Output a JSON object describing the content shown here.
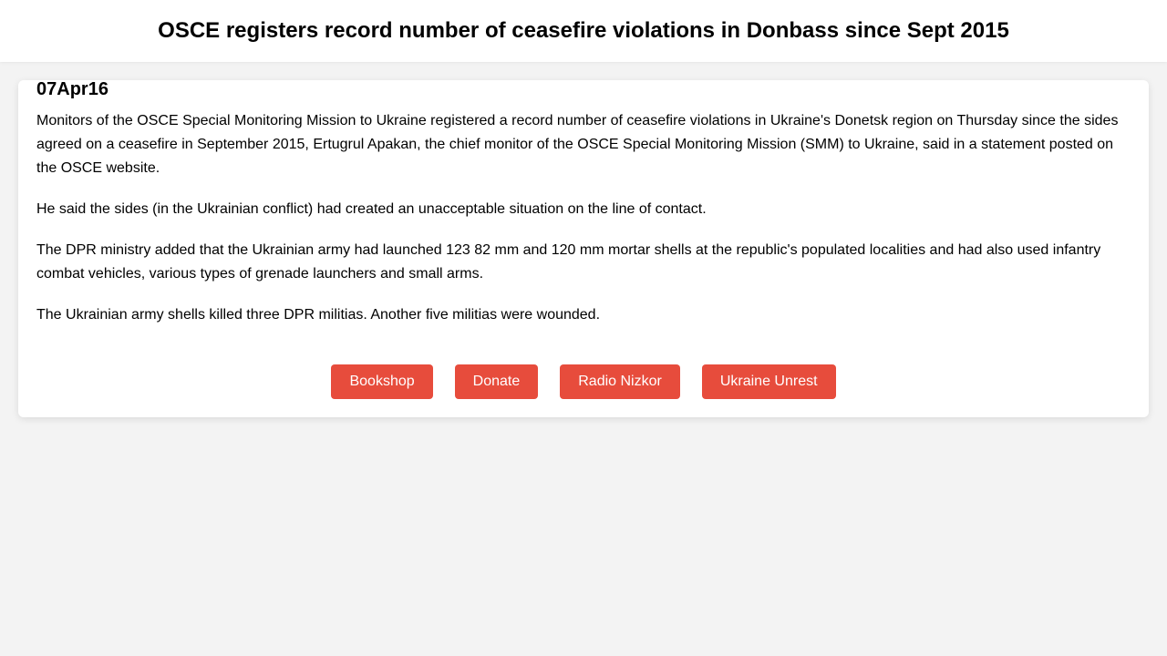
{
  "header": {
    "title": "OSCE registers record number of ceasefire violations in Donbass since Sept 2015"
  },
  "article": {
    "date": "07Apr16",
    "paragraphs": [
      "Monitors of the OSCE Special Monitoring Mission to Ukraine registered a record number of ceasefire violations in Ukraine's Donetsk region on Thursday since the sides agreed on a ceasefire in September 2015, Ertugrul Apakan, the chief monitor of the OSCE Special Monitoring Mission (SMM) to Ukraine, said in a statement posted on the OSCE website.",
      "He said the sides (in the Ukrainian conflict) had created an unacceptable situation on the line of contact.",
      "The DPR ministry added that the Ukrainian army had launched 123 82 mm and 120 mm mortar shells at the republic's populated localities and had also used infantry combat vehicles, various types of grenade launchers and small arms.",
      "The Ukrainian army shells killed three DPR militias. Another five militias were wounded."
    ]
  },
  "buttons": [
    {
      "label": "Bookshop"
    },
    {
      "label": "Donate"
    },
    {
      "label": "Radio Nizkor"
    },
    {
      "label": "Ukraine Unrest"
    }
  ],
  "colors": {
    "accent": "#e74c3c",
    "background": "#f3f3f3",
    "card": "#ffffff"
  }
}
